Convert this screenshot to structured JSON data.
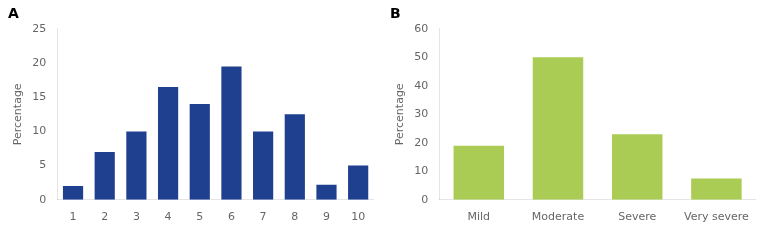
{
  "chart_data": [
    {
      "type": "bar",
      "title": "A",
      "categories": [
        1,
        2,
        3,
        4,
        5,
        6,
        7,
        8,
        9,
        10
      ],
      "values": [
        2,
        7,
        10,
        16.5,
        14,
        19.5,
        10,
        12.5,
        2.2,
        5
      ],
      "color": "#1F3F8F",
      "ylabel": "Percentage",
      "ylim": [
        0,
        25
      ],
      "yticks": [
        0,
        5,
        10,
        15,
        20,
        25
      ],
      "grid": false
    },
    {
      "type": "bar",
      "title": "B",
      "categories": [
        "Mild",
        "Moderate",
        "Severe",
        "Very severe"
      ],
      "values": [
        19,
        50,
        23,
        7.5
      ],
      "color": "#AACC55",
      "ylabel": "Percentage",
      "ylim": [
        0,
        60
      ],
      "yticks": [
        0,
        10,
        20,
        30,
        40,
        50,
        60
      ],
      "grid": false
    }
  ]
}
